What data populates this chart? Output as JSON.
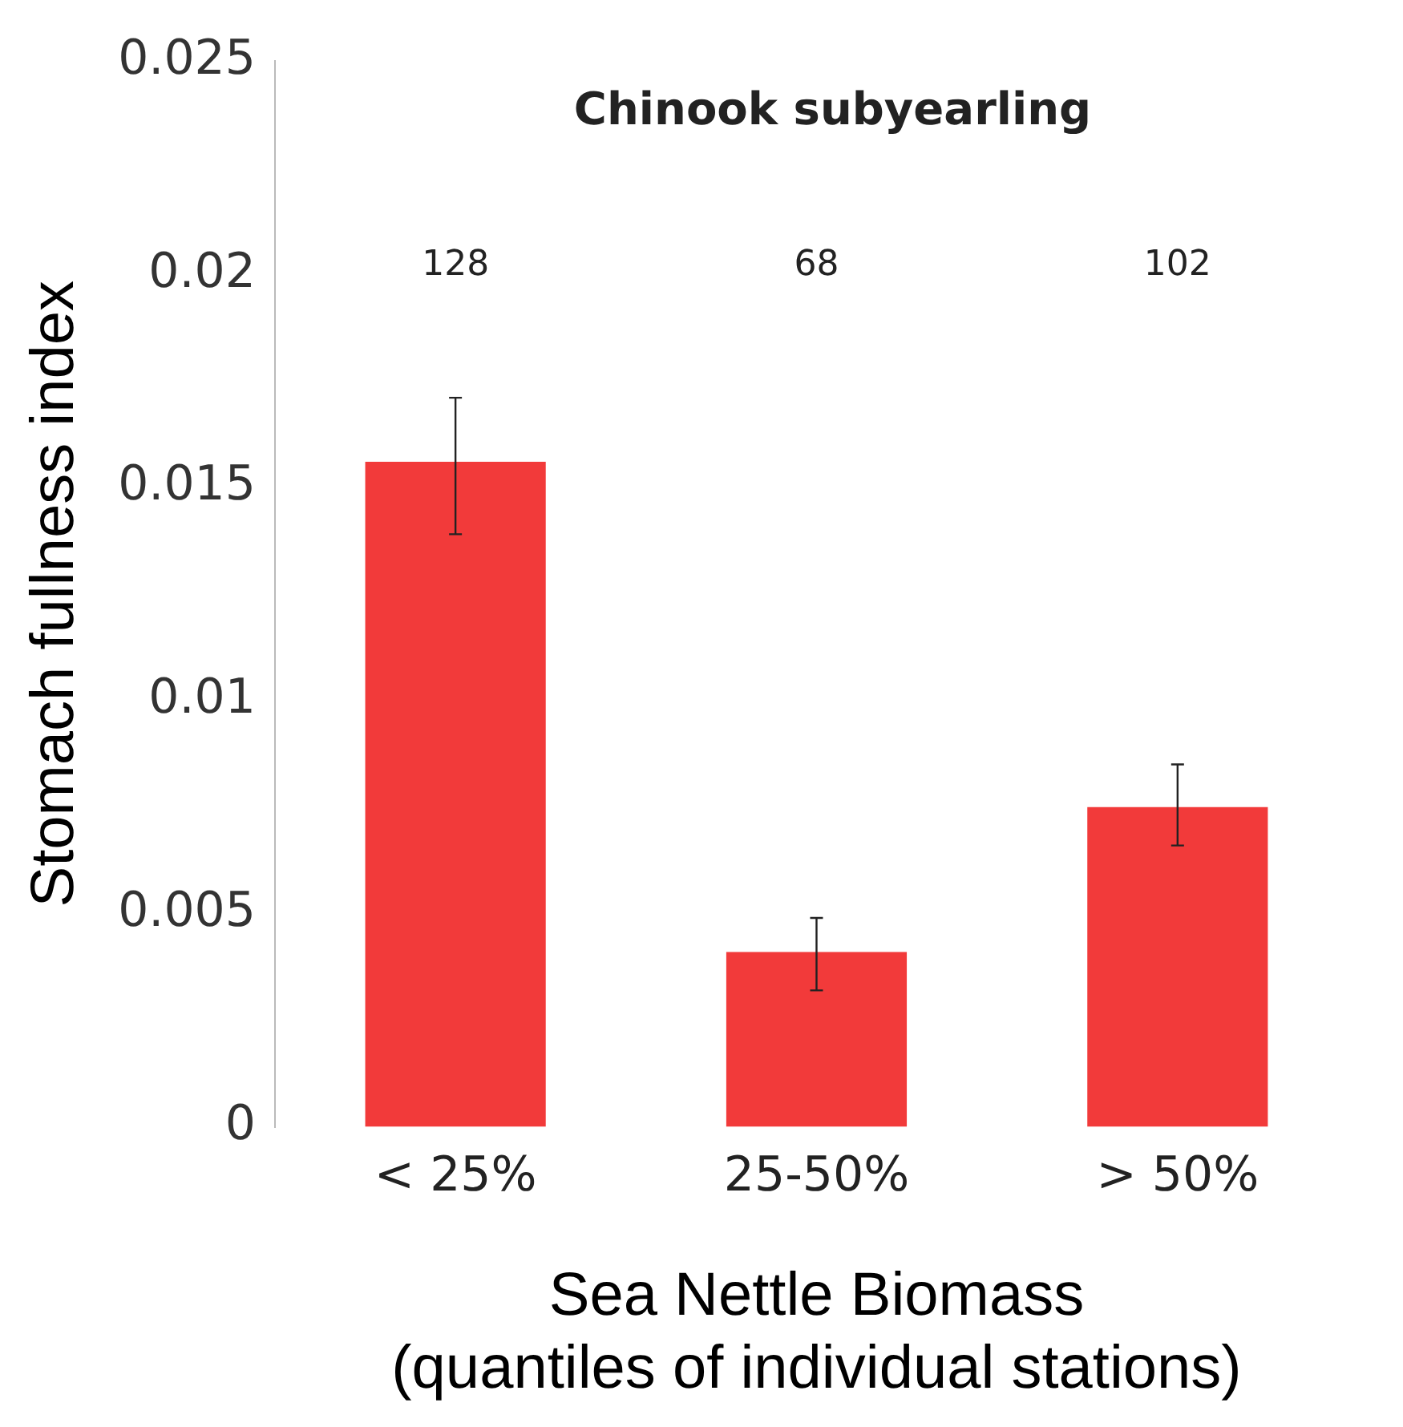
{
  "chart_data": {
    "type": "bar",
    "title": "Chinook subyearling",
    "xlabel": "Sea Nettle Biomass (quantiles of individual stations)",
    "ylabel": "Stomach fullness index",
    "categories": [
      "< 25%",
      "25-50%",
      "> 50%"
    ],
    "values": [
      0.0156,
      0.0041,
      0.0075
    ],
    "errors": [
      [
        0.0139,
        0.0171
      ],
      [
        0.0032,
        0.0049
      ],
      [
        0.0066,
        0.0085
      ]
    ],
    "color": "#f23a3a",
    "ylim": [
      0,
      0.025
    ],
    "yticks": [
      0,
      0.005,
      0.01,
      0.015,
      0.02,
      0.025
    ],
    "grid": false,
    "legend": false,
    "annotations": [
      "128",
      "68",
      "102"
    ]
  }
}
